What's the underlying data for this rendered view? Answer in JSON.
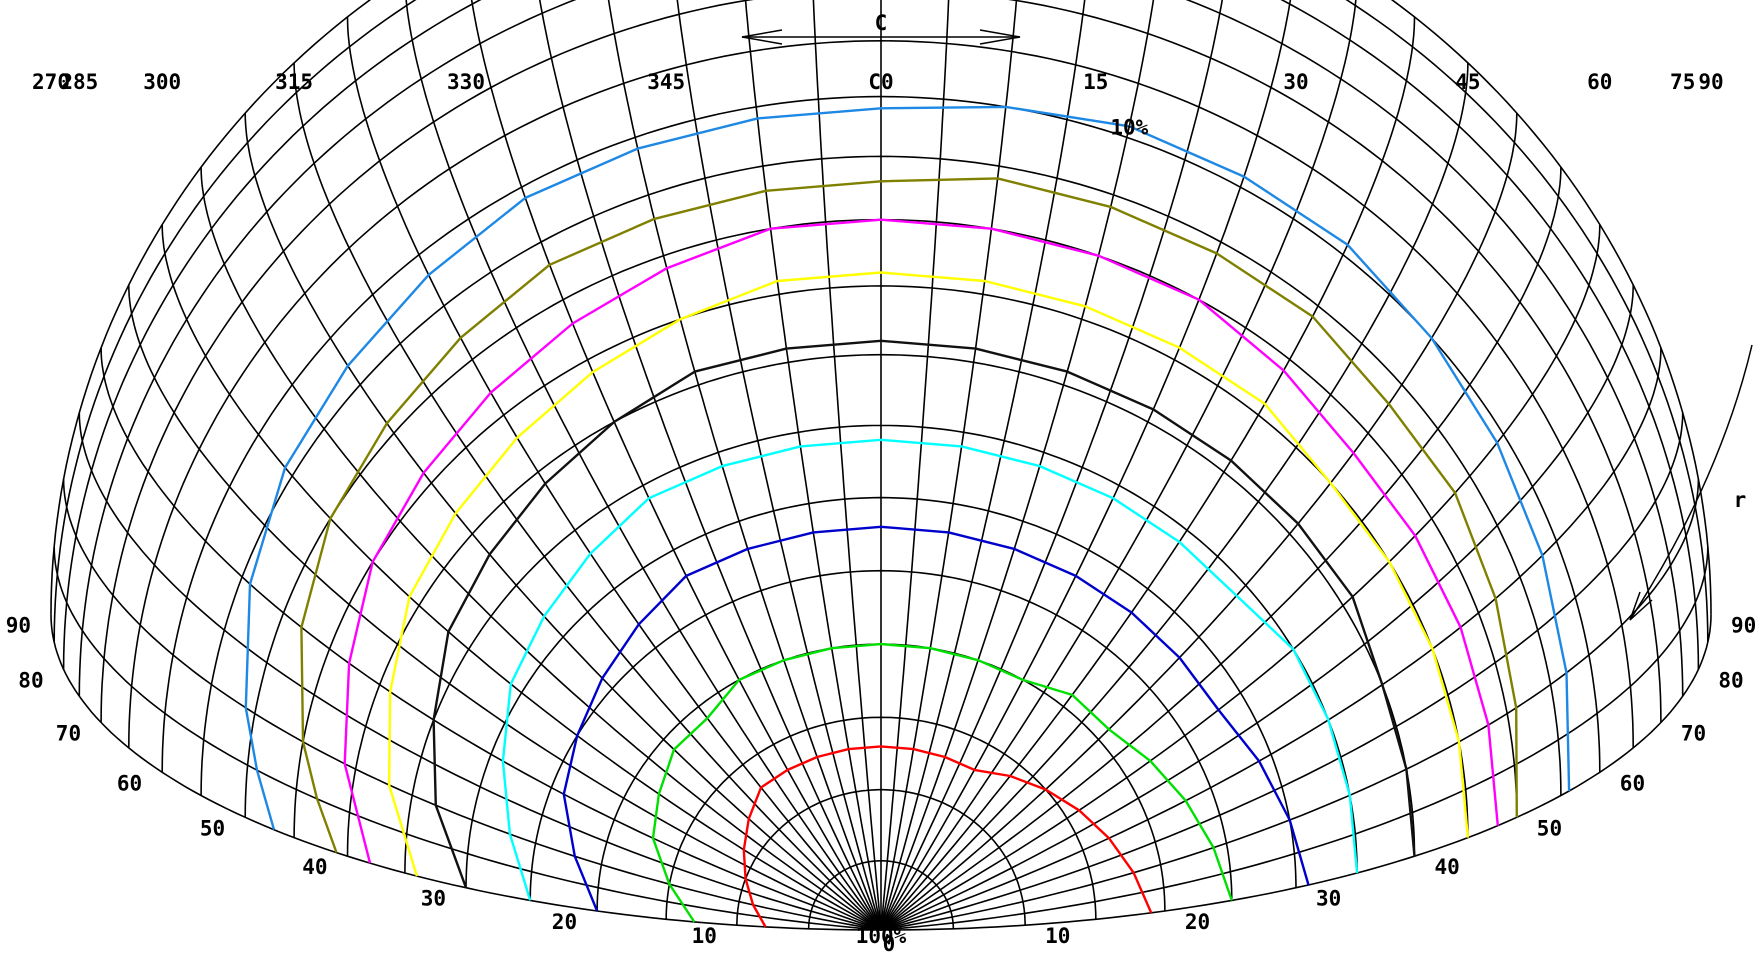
{
  "chart_data": {
    "type": "line",
    "projection": "isolux polar grid, half view",
    "c_axis": {
      "title": "C",
      "ticks": [
        "270",
        "285",
        "300",
        "315",
        "330",
        "345",
        "C0",
        "15",
        "30",
        "45",
        "60",
        "75",
        "90"
      ],
      "range": [
        -90,
        90
      ],
      "grid_step": 5
    },
    "gamma_axis": {
      "title": "r",
      "left_ticks": [
        "10",
        "20",
        "30",
        "40",
        "50",
        "60",
        "70",
        "80",
        "90"
      ],
      "right_ticks": [
        "10",
        "20",
        "30",
        "40",
        "50",
        "60",
        "70",
        "80",
        "90"
      ],
      "center_label": "0",
      "range": [
        0,
        90
      ],
      "grid_step": 5
    },
    "grid": true,
    "series": [
      {
        "name": "10%",
        "color": "#1e88e5",
        "c": [
          -90,
          -85,
          -80,
          -70,
          -60,
          -50,
          -40,
          -30,
          -20,
          -10,
          0,
          10,
          20,
          30,
          40,
          50,
          60,
          70,
          80,
          90
        ],
        "gamma": [
          47,
          49,
          51,
          54,
          56,
          57,
          58,
          59,
          59,
          59,
          59,
          60,
          61,
          61,
          61,
          60,
          59,
          58,
          57,
          56
        ]
      },
      {
        "name": "",
        "color": "#808000",
        "c": [
          -90,
          -85,
          -80,
          -70,
          -60,
          -50,
          -40,
          -30,
          -20,
          -10,
          0,
          10,
          20,
          30,
          40,
          50,
          60,
          70,
          80,
          90
        ],
        "gamma": [
          41,
          43,
          45,
          48,
          50,
          51,
          52,
          53,
          53,
          53,
          53,
          54,
          54,
          54,
          54,
          53,
          53,
          52,
          51,
          50
        ]
      },
      {
        "name": "",
        "color": "#ff00ff",
        "c": [
          -90,
          -80,
          -70,
          -60,
          -50,
          -40,
          -30,
          -20,
          -10,
          0,
          10,
          20,
          30,
          40,
          50,
          60,
          70,
          80,
          90
        ],
        "gamma": [
          38,
          41,
          43,
          45,
          46,
          47,
          48,
          49,
          50,
          50,
          50,
          50,
          50,
          49,
          48,
          48,
          48,
          48,
          48
        ]
      },
      {
        "name": "",
        "color": "#ffff00",
        "c": [
          -90,
          -80,
          -70,
          -60,
          -50,
          -40,
          -30,
          -20,
          -10,
          0,
          10,
          20,
          30,
          40,
          50,
          60,
          70,
          80,
          90
        ],
        "gamma": [
          34,
          37,
          39,
          41,
          42,
          43,
          44,
          45,
          46,
          46,
          46,
          46,
          46,
          46,
          45,
          45,
          45,
          45,
          45
        ]
      },
      {
        "name": "",
        "color": "#111111",
        "c": [
          -90,
          -80,
          -70,
          -60,
          -50,
          -40,
          -30,
          -20,
          -10,
          0,
          10,
          20,
          30,
          40,
          50,
          60,
          70,
          80,
          90
        ],
        "gamma": [
          30,
          33,
          35,
          37,
          38,
          39,
          40,
          41,
          41,
          41,
          41,
          41,
          41,
          41,
          41,
          41,
          40,
          40,
          40
        ]
      },
      {
        "name": "",
        "color": "#00ffff",
        "c": [
          -90,
          -80,
          -70,
          -60,
          -50,
          -40,
          -30,
          -20,
          -10,
          0,
          10,
          20,
          30,
          40,
          50,
          60,
          70,
          80,
          90
        ],
        "gamma": [
          25,
          27,
          29,
          31,
          32,
          33,
          34,
          34,
          34,
          34,
          34,
          34,
          34,
          34,
          34,
          35,
          35,
          35,
          35
        ]
      },
      {
        "name": "",
        "color": "#0000cc",
        "c": [
          -90,
          -80,
          -70,
          -60,
          -50,
          -40,
          -30,
          -20,
          -10,
          0,
          10,
          20,
          30,
          40,
          50,
          60,
          70,
          80,
          90
        ],
        "gamma": [
          20,
          22,
          24,
          25,
          26,
          27,
          28,
          28,
          28,
          28,
          28,
          28,
          28,
          28,
          28,
          28,
          29,
          30,
          31
        ]
      },
      {
        "name": "",
        "color": "#00e000",
        "c": [
          -90,
          -80,
          -70,
          -60,
          -50,
          -40,
          -30,
          -20,
          -10,
          0,
          10,
          20,
          30,
          40,
          50,
          60,
          70,
          80,
          90
        ],
        "gamma": [
          13,
          15,
          17,
          18,
          19,
          19,
          20,
          20,
          20,
          20,
          20,
          20,
          20,
          21,
          21,
          22,
          23,
          24,
          25
        ]
      },
      {
        "name": "",
        "color": "#ff0000",
        "c": [
          -90,
          -80,
          -70,
          -60,
          -50,
          -40,
          -30,
          -20,
          -10,
          0,
          10,
          20,
          30,
          40,
          50,
          60,
          70,
          80,
          90
        ],
        "gamma": [
          8,
          9,
          10,
          11,
          12,
          13,
          13,
          13,
          13,
          13,
          13,
          13,
          13,
          14,
          15,
          16,
          17,
          18,
          19
        ]
      },
      {
        "name": "100%",
        "color": "#000000",
        "c": [
          -90,
          -60,
          -30,
          0,
          30,
          60,
          90
        ],
        "gamma": [
          1,
          1,
          1,
          1,
          1,
          1,
          1
        ]
      }
    ],
    "annotations": [
      "10%",
      "100%"
    ]
  }
}
